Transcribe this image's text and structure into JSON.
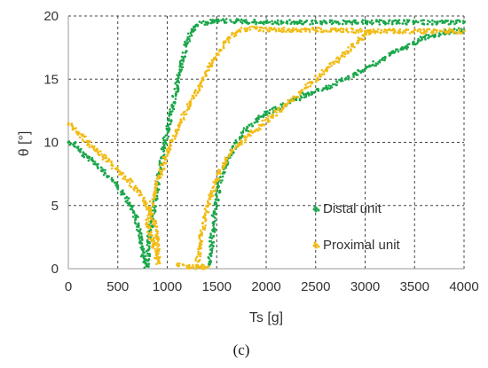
{
  "chart_data": {
    "type": "scatter",
    "xlabel": "Ts [g]",
    "ylabel": "θ [°]",
    "xlim": [
      0,
      4000
    ],
    "ylim": [
      0,
      20
    ],
    "x_ticks": [
      0,
      500,
      1000,
      1500,
      2000,
      2500,
      3000,
      3500,
      4000
    ],
    "y_ticks": [
      0,
      5,
      10,
      15,
      20
    ],
    "x_tick_labels": [
      "0",
      "500",
      "1000",
      "1500",
      "2000",
      "2500",
      "3000",
      "3500",
      "4000"
    ],
    "y_tick_labels": [
      "0",
      "5",
      "10",
      "15",
      "20"
    ],
    "grid": true,
    "legend_position": "lower-right",
    "caption": "(c)",
    "series": [
      {
        "name": "Distal unit",
        "color": "#1aa64a",
        "points": [
          [
            0,
            10
          ],
          [
            60,
            9.9
          ],
          [
            150,
            9.0
          ],
          [
            250,
            8.5
          ],
          [
            350,
            7.8
          ],
          [
            450,
            7.0
          ],
          [
            550,
            6.0
          ],
          [
            620,
            5.2
          ],
          [
            680,
            4.0
          ],
          [
            720,
            3.0
          ],
          [
            740,
            2.0
          ],
          [
            760,
            1.0
          ],
          [
            780,
            0.4
          ],
          [
            790,
            0.2
          ],
          [
            810,
            1.5
          ],
          [
            830,
            3.0
          ],
          [
            850,
            4.2
          ],
          [
            880,
            5.5
          ],
          [
            920,
            7.5
          ],
          [
            960,
            9.5
          ],
          [
            1000,
            11.0
          ],
          [
            1050,
            12.8
          ],
          [
            1100,
            14.5
          ],
          [
            1150,
            16.2
          ],
          [
            1200,
            17.8
          ],
          [
            1250,
            18.8
          ],
          [
            1300,
            19.3
          ],
          [
            1400,
            19.5
          ],
          [
            1500,
            19.6
          ],
          [
            1700,
            19.6
          ],
          [
            2000,
            19.5
          ],
          [
            2300,
            19.5
          ],
          [
            2600,
            19.5
          ],
          [
            2900,
            19.5
          ],
          [
            3200,
            19.5
          ],
          [
            3500,
            19.5
          ],
          [
            3800,
            19.5
          ],
          [
            4000,
            19.5
          ],
          [
            1420,
            0.2
          ],
          [
            1440,
            1.5
          ],
          [
            1460,
            3.0
          ],
          [
            1480,
            4.5
          ],
          [
            1520,
            6.5
          ],
          [
            1600,
            8.5
          ],
          [
            1700,
            10.0
          ],
          [
            1800,
            11.0
          ],
          [
            1900,
            11.8
          ],
          [
            2000,
            12.3
          ],
          [
            2200,
            13.0
          ],
          [
            2400,
            13.8
          ],
          [
            2600,
            14.3
          ],
          [
            2800,
            15.0
          ],
          [
            3000,
            15.8
          ],
          [
            3200,
            16.7
          ],
          [
            3400,
            17.5
          ],
          [
            3600,
            18.3
          ],
          [
            3800,
            18.7
          ],
          [
            4000,
            18.9
          ]
        ]
      },
      {
        "name": "Proximal unit",
        "color": "#f2bb14",
        "points": [
          [
            0,
            11.4
          ],
          [
            40,
            11.3
          ],
          [
            100,
            10.8
          ],
          [
            200,
            10.0
          ],
          [
            300,
            9.2
          ],
          [
            400,
            8.5
          ],
          [
            500,
            7.8
          ],
          [
            600,
            7.0
          ],
          [
            700,
            6.2
          ],
          [
            780,
            5.3
          ],
          [
            830,
            4.5
          ],
          [
            870,
            3.5
          ],
          [
            890,
            2.5
          ],
          [
            900,
            1.5
          ],
          [
            910,
            0.5
          ],
          [
            800,
            3.5
          ],
          [
            830,
            4.8
          ],
          [
            870,
            6.0
          ],
          [
            920,
            7.3
          ],
          [
            980,
            8.8
          ],
          [
            1050,
            10.2
          ],
          [
            1130,
            11.5
          ],
          [
            1230,
            13.0
          ],
          [
            1330,
            14.5
          ],
          [
            1430,
            16.0
          ],
          [
            1530,
            17.3
          ],
          [
            1630,
            18.3
          ],
          [
            1730,
            18.9
          ],
          [
            1900,
            19.0
          ],
          [
            2100,
            18.9
          ],
          [
            2400,
            18.9
          ],
          [
            2700,
            18.9
          ],
          [
            3000,
            18.8
          ],
          [
            3300,
            18.8
          ],
          [
            3600,
            18.8
          ],
          [
            4000,
            18.8
          ],
          [
            1100,
            0.3
          ],
          [
            1200,
            0.2
          ],
          [
            1300,
            0.1
          ],
          [
            1400,
            0.1
          ],
          [
            1300,
            0.2
          ],
          [
            1330,
            2.0
          ],
          [
            1380,
            4.0
          ],
          [
            1450,
            6.0
          ],
          [
            1530,
            7.7
          ],
          [
            1630,
            9.0
          ],
          [
            1750,
            10.0
          ],
          [
            1900,
            11.0
          ],
          [
            2050,
            12.0
          ],
          [
            2200,
            13.0
          ],
          [
            2400,
            14.3
          ],
          [
            2600,
            15.7
          ],
          [
            2800,
            17.0
          ],
          [
            2950,
            18.2
          ],
          [
            3050,
            18.8
          ]
        ]
      }
    ]
  }
}
